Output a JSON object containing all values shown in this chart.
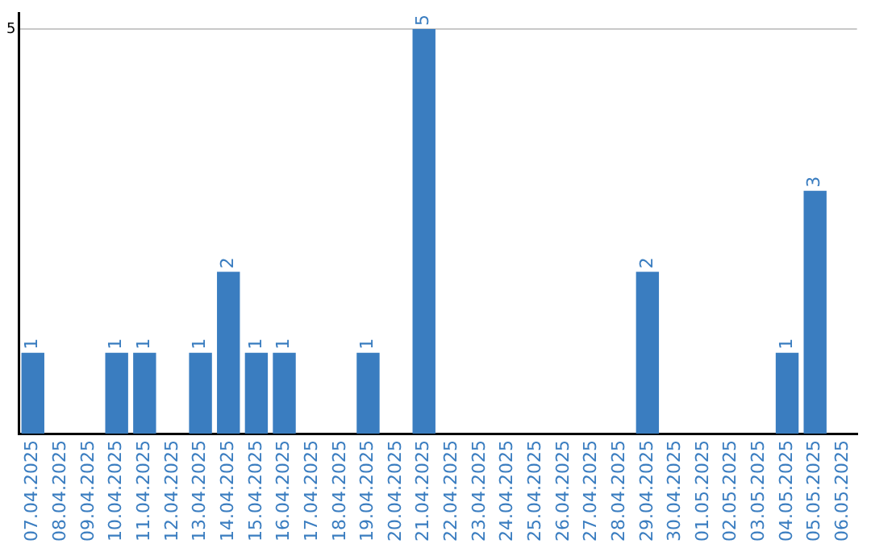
{
  "chart_data": {
    "type": "bar",
    "categories": [
      "07.04.2025",
      "08.04.2025",
      "09.04.2025",
      "10.04.2025",
      "11.04.2025",
      "12.04.2025",
      "13.04.2025",
      "14.04.2025",
      "15.04.2025",
      "16.04.2025",
      "17.04.2025",
      "18.04.2025",
      "19.04.2025",
      "20.04.2025",
      "21.04.2025",
      "22.04.2025",
      "23.04.2025",
      "24.04.2025",
      "25.04.2025",
      "26.04.2025",
      "27.04.2025",
      "28.04.2025",
      "29.04.2025",
      "30.04.2025",
      "01.05.2025",
      "02.05.2025",
      "03.05.2025",
      "04.05.2025",
      "05.05.2025",
      "06.05.2025"
    ],
    "values": [
      1,
      0,
      0,
      1,
      1,
      0,
      1,
      2,
      1,
      1,
      0,
      0,
      1,
      0,
      5,
      0,
      0,
      0,
      0,
      0,
      0,
      0,
      2,
      0,
      0,
      0,
      0,
      1,
      3,
      0
    ],
    "value_labels": [
      "1",
      null,
      null,
      "1",
      "1",
      null,
      "1",
      "2",
      "1",
      "1",
      null,
      null,
      "1",
      null,
      "5",
      null,
      null,
      null,
      null,
      null,
      null,
      null,
      "2",
      null,
      null,
      null,
      null,
      "1",
      "3",
      null
    ],
    "color": "#3a7dc0",
    "ylim": [
      0,
      5.2
    ],
    "yticks": [
      5
    ],
    "grid": "y",
    "legend": false
  }
}
